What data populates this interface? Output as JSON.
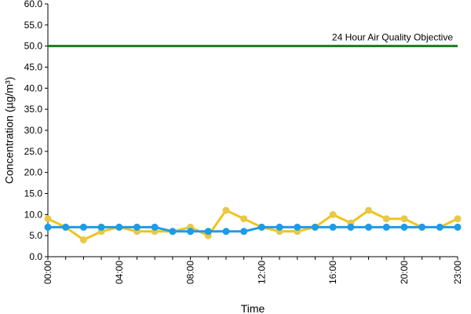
{
  "chart_data": {
    "type": "line",
    "xlabel": "Time",
    "ylabel": "Concentration (µg/m³)",
    "ylim": [
      0,
      60
    ],
    "yticks": [
      "0.0",
      "5.0",
      "10.0",
      "15.0",
      "20.0",
      "25.0",
      "30.0",
      "35.0",
      "40.0",
      "45.0",
      "50.0",
      "55.0",
      "60.0"
    ],
    "x": [
      0,
      1,
      2,
      3,
      4,
      5,
      6,
      7,
      8,
      9,
      10,
      11,
      12,
      13,
      14,
      15,
      16,
      17,
      18,
      19,
      20,
      21,
      22,
      23
    ],
    "xticks": [
      {
        "hour": 0,
        "label": "00:00"
      },
      {
        "hour": 4,
        "label": "04:00"
      },
      {
        "hour": 8,
        "label": "08:00"
      },
      {
        "hour": 12,
        "label": "12:00"
      },
      {
        "hour": 16,
        "label": "16:00"
      },
      {
        "hour": 20,
        "label": "20:00"
      },
      {
        "hour": 23,
        "label": "23:00"
      }
    ],
    "series": [
      {
        "color": "#f0c419",
        "marker": "#e8c84a",
        "values": [
          9,
          7,
          4,
          6,
          7,
          6,
          6,
          6,
          7,
          5,
          11,
          9,
          7,
          6,
          6,
          7,
          10,
          8,
          11,
          9,
          9,
          7,
          7,
          9
        ]
      },
      {
        "color": "#1e9be6",
        "marker": "#1e9be6",
        "values": [
          7,
          7,
          7,
          7,
          7,
          7,
          7,
          6,
          6,
          6,
          6,
          6,
          7,
          7,
          7,
          7,
          7,
          7,
          7,
          7,
          7,
          7,
          7,
          7
        ]
      }
    ],
    "reference_line": {
      "value": 50,
      "label": "24 Hour Air Quality Objective",
      "color": "#1e7a1e"
    },
    "grid": false,
    "legend": "none"
  }
}
